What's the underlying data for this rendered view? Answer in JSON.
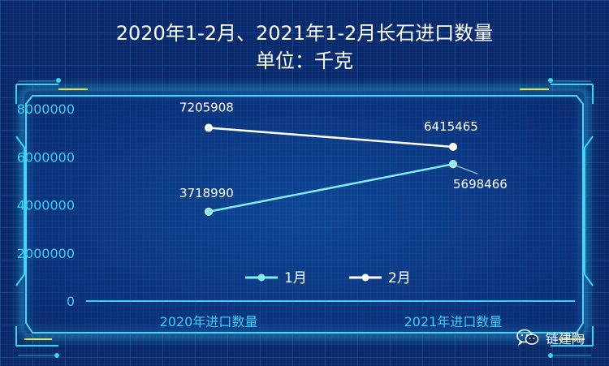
{
  "title": "2020年1-2月、2021年1-2月长石进口数量",
  "subtitle": "单位：千克",
  "watermark": "链建陶",
  "colors": {
    "background": "#0a2a6b",
    "frame": "#35d6f0",
    "frame_accent": "#e6e63a",
    "axis_label": "#3ad0f5",
    "series_1": "#7feeee",
    "series_2": "#ffffff",
    "data_label": "#ffffff"
  },
  "chart_data": {
    "type": "line",
    "categories": [
      "2020年进口数量",
      "2021年进口数量"
    ],
    "series": [
      {
        "name": "1月",
        "values": [
          3718990,
          5698466
        ]
      },
      {
        "name": "2月",
        "values": [
          7205908,
          6415465
        ]
      }
    ],
    "data_labels": [
      [
        "3718990",
        "5698466"
      ],
      [
        "7205908",
        "6415465"
      ]
    ],
    "ylim": [
      0,
      8000000
    ],
    "yticks": [
      "0",
      "2000000",
      "4000000",
      "6000000",
      "8000000"
    ],
    "ytick_values": [
      0,
      2000000,
      4000000,
      6000000,
      8000000
    ],
    "grid": true,
    "legend_position": "bottom-center"
  }
}
